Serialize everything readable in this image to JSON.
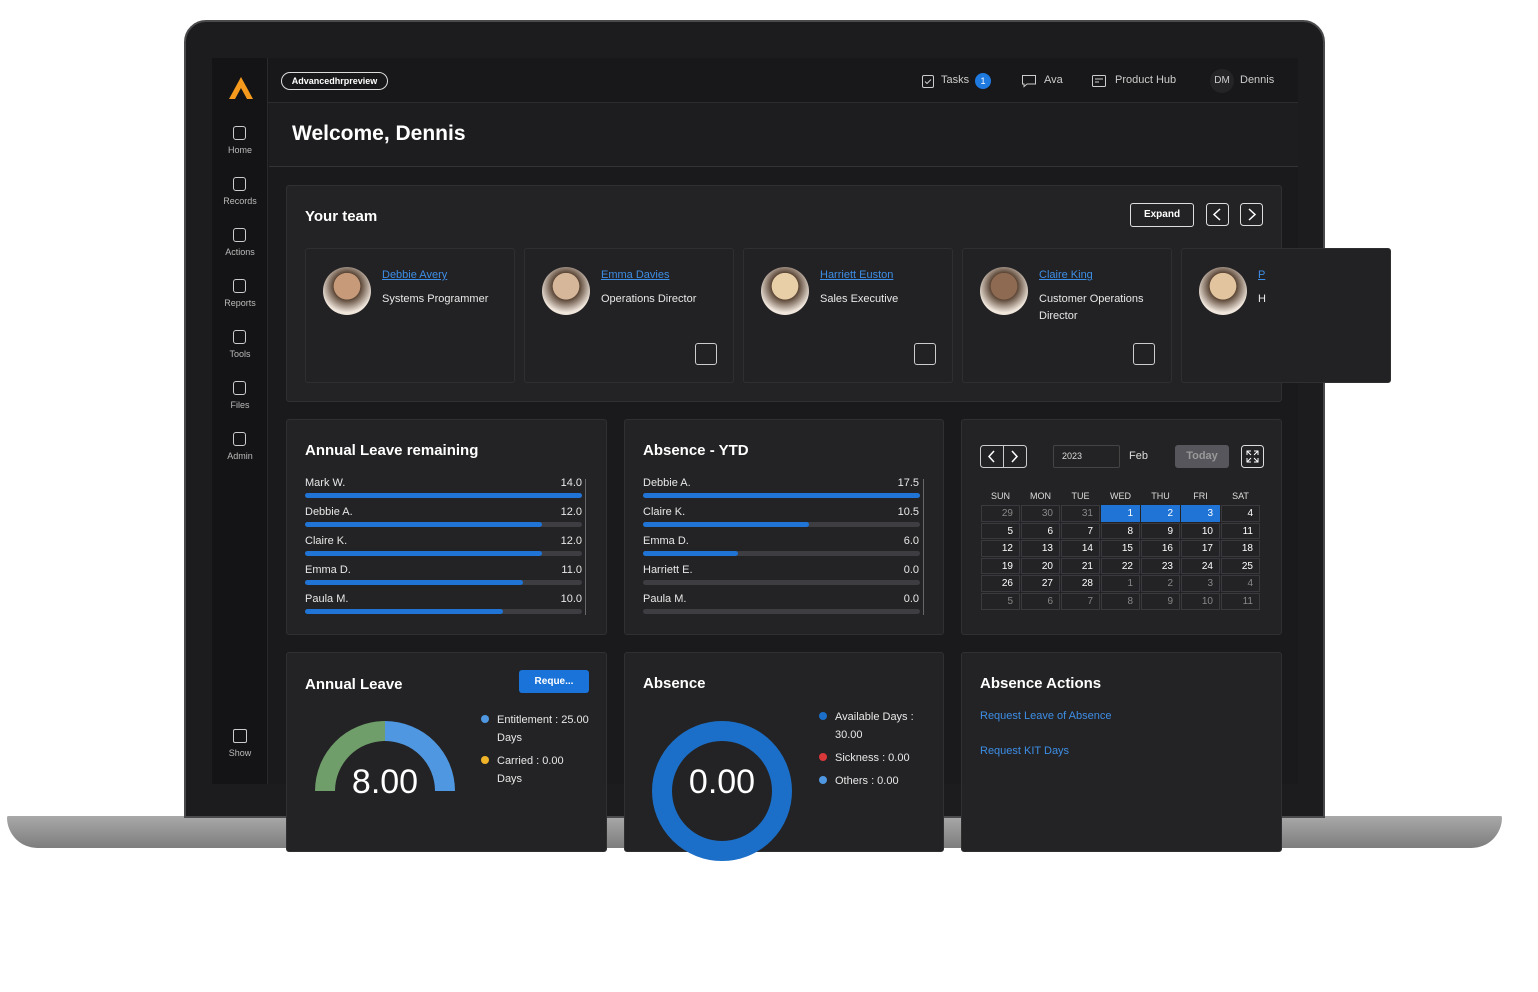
{
  "header": {
    "tenant": "Advancedhrpreview",
    "tasks": "Tasks",
    "tasks_count": 1,
    "ava": "Ava",
    "product_hub": "Product Hub",
    "user_initials": "DM",
    "user_name": "Dennis"
  },
  "sidebar": {
    "items": [
      "Home",
      "Records",
      "Actions",
      "Reports",
      "Tools",
      "Files",
      "Admin"
    ],
    "show": "Show"
  },
  "welcome": "Welcome, Dennis",
  "team": {
    "title": "Your team",
    "expand": "Expand",
    "members": [
      {
        "name": "Debbie Avery",
        "role": "Systems Programmer"
      },
      {
        "name": "Emma Davies",
        "role": "Operations Director"
      },
      {
        "name": "Harriett Euston",
        "role": "Sales Executive"
      },
      {
        "name": "Claire King",
        "role": "Customer Operations Director"
      },
      {
        "name": "P",
        "role": "H"
      }
    ]
  },
  "leave_remaining": {
    "title": "Annual Leave remaining",
    "names": [
      "Mark W.",
      "Debbie A.",
      "Claire K.",
      "Emma D.",
      "Paula M."
    ],
    "values": [
      14,
      12,
      12,
      11,
      10
    ],
    "value_labels": [
      "14.0",
      "12.0",
      "12.0",
      "11.0",
      "10.0"
    ]
  },
  "absence_ytd": {
    "title": "Absence - YTD",
    "names": [
      "Debbie A.",
      "Claire K.",
      "Emma D.",
      "Harriett E.",
      "Paula M."
    ],
    "values": [
      17.5,
      10.5,
      6,
      0,
      0
    ],
    "value_labels": [
      "17.5",
      "10.5",
      "6.0",
      "0.0",
      "0.0"
    ]
  },
  "calendar": {
    "year": "2023",
    "month": "Feb",
    "today": "Today",
    "weekdays": [
      "SUN",
      "MON",
      "TUE",
      "WED",
      "THU",
      "FRI",
      "SAT"
    ],
    "weeks": [
      [
        29,
        30,
        31,
        1,
        2,
        3,
        4
      ],
      [
        5,
        6,
        7,
        8,
        9,
        10,
        11
      ],
      [
        12,
        13,
        14,
        15,
        16,
        17,
        18
      ],
      [
        19,
        20,
        21,
        22,
        23,
        24,
        25
      ],
      [
        26,
        27,
        28,
        1,
        2,
        3,
        4
      ],
      [
        5,
        6,
        7,
        8,
        9,
        10,
        11
      ]
    ]
  },
  "annual_leave": {
    "title": "Annual Leave",
    "button": "Reque...",
    "legend": [
      "Entitlement : 25.00 Days",
      "Carried : 0.00 Days"
    ],
    "center": "8.00"
  },
  "absence": {
    "title": "Absence",
    "legend": [
      "Available Days : 30.00",
      "Sickness : 0.00",
      "Others : 0.00"
    ],
    "center": "0.00"
  },
  "absence_actions": {
    "title": "Absence Actions",
    "links": [
      "Request Leave of Absence",
      "Request KIT Days"
    ]
  }
}
